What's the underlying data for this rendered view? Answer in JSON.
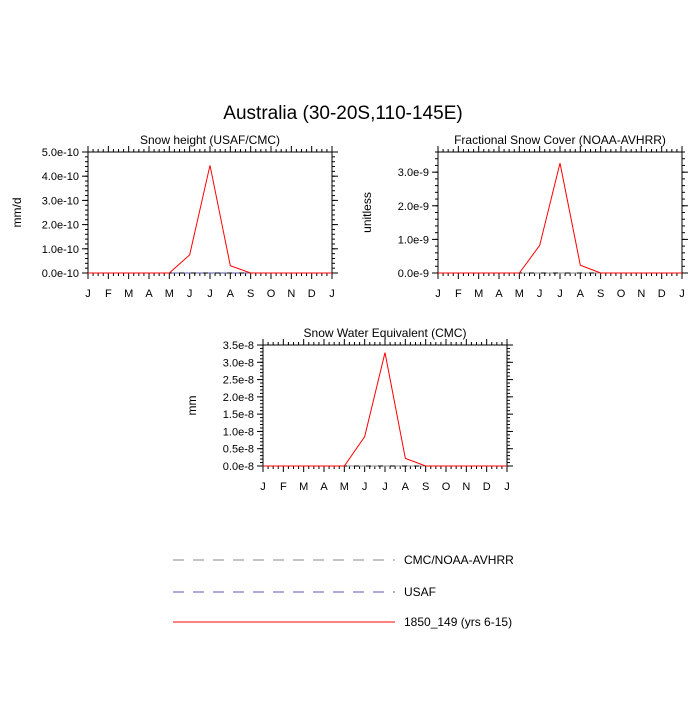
{
  "figure_title": "Australia (30-20S,110-145E)",
  "legend": [
    {
      "label": "CMC/NOAA-AVHRR",
      "color": "#8a8a8a",
      "dash": "dashed"
    },
    {
      "label": "USAF",
      "color": "#5a5aa8",
      "dash": "dashed"
    },
    {
      "label": "1850_149 (yrs 6-15)",
      "color": "#ff0000",
      "dash": "solid"
    }
  ],
  "chart_data": [
    {
      "type": "line",
      "title": "Snow height (USAF/CMC)",
      "xlabel": "",
      "ylabel": "mm/d",
      "categories": [
        "J",
        "F",
        "M",
        "A",
        "M",
        "J",
        "J",
        "A",
        "S",
        "O",
        "N",
        "D",
        "J"
      ],
      "ylim": [
        0,
        5e-10
      ],
      "yticks": [
        0,
        1e-10,
        2e-10,
        3e-10,
        4e-10,
        5e-10
      ],
      "ytick_labels": [
        "0.0e-10",
        "1.0e-10",
        "2.0e-10",
        "3.0e-10",
        "4.0e-10",
        "5.0e-10"
      ],
      "series": [
        {
          "name": "1850_149 (yrs 6-15)",
          "color": "#ff0000",
          "values": [
            0,
            0,
            0,
            0,
            0,
            7.5e-11,
            4.45e-10,
            3e-11,
            0,
            0,
            0,
            0,
            0
          ]
        },
        {
          "name": "USAF",
          "color": "#5a5aa8",
          "values": [
            0,
            0,
            0,
            0,
            0,
            0,
            0,
            0,
            0,
            0,
            0,
            0,
            0
          ]
        }
      ]
    },
    {
      "type": "line",
      "title": "Fractional Snow Cover (NOAA-AVHRR)",
      "xlabel": "",
      "ylabel": "unitless",
      "categories": [
        "J",
        "F",
        "M",
        "A",
        "M",
        "J",
        "J",
        "A",
        "S",
        "O",
        "N",
        "D",
        "J"
      ],
      "ylim": [
        0,
        3.6e-09
      ],
      "yticks": [
        0,
        1e-09,
        2e-09,
        3e-09
      ],
      "ytick_labels": [
        "0.0e-9",
        "1.0e-9",
        "2.0e-9",
        "3.0e-9"
      ],
      "series": [
        {
          "name": "1850_149 (yrs 6-15)",
          "color": "#ff0000",
          "values": [
            0,
            0,
            0,
            0,
            0,
            8.2e-10,
            3.27e-09,
            2.3e-10,
            0,
            0,
            0,
            0,
            0
          ]
        },
        {
          "name": "CMC/NOAA-AVHRR",
          "color": "#8a8a8a",
          "values": [
            0,
            0,
            0,
            0,
            0,
            0,
            0,
            0,
            0,
            0,
            0,
            0,
            0
          ]
        }
      ]
    },
    {
      "type": "line",
      "title": "Snow Water Equivalent (CMC)",
      "xlabel": "",
      "ylabel": "mm",
      "categories": [
        "J",
        "F",
        "M",
        "A",
        "M",
        "J",
        "J",
        "A",
        "S",
        "O",
        "N",
        "D",
        "J"
      ],
      "ylim": [
        0,
        3.5e-08
      ],
      "yticks": [
        0,
        5e-09,
        1e-08,
        1.5e-08,
        2e-08,
        2.5e-08,
        3e-08,
        3.5e-08
      ],
      "ytick_labels": [
        "0.0e-8",
        "0.5e-8",
        "1.0e-8",
        "1.5e-8",
        "2.0e-8",
        "2.5e-8",
        "3.0e-8",
        "3.5e-8"
      ],
      "series": [
        {
          "name": "1850_149 (yrs 6-15)",
          "color": "#ff0000",
          "values": [
            0,
            0,
            0,
            0,
            0,
            8.5e-09,
            3.28e-08,
            2.2e-09,
            0,
            0,
            0,
            0,
            0
          ]
        },
        {
          "name": "CMC/NOAA-AVHRR",
          "color": "#8a8a8a",
          "values": [
            0,
            0,
            0,
            0,
            0,
            0,
            0,
            0,
            0,
            0,
            0,
            0,
            0
          ]
        }
      ]
    }
  ]
}
